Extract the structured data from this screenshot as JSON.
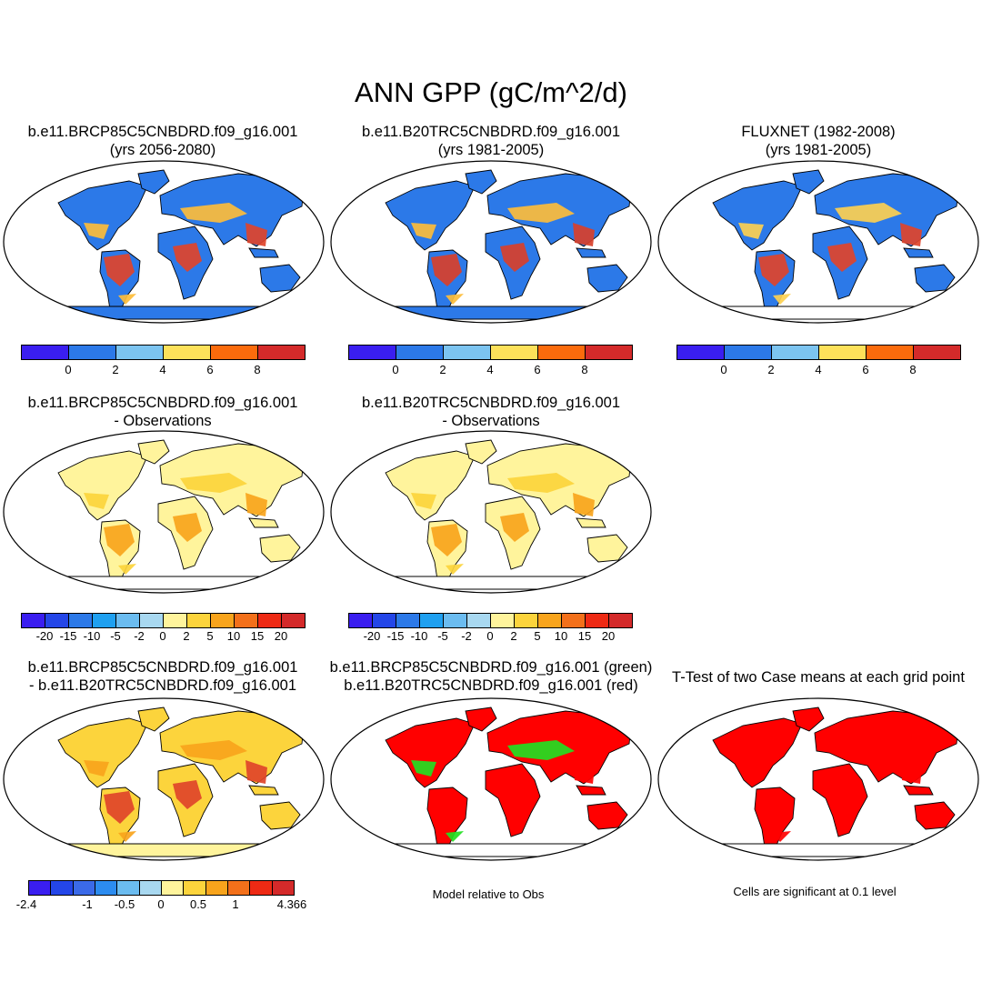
{
  "title": "ANN GPP (gC/m^2/d)",
  "panels": {
    "p1": {
      "line1": "b.e11.BRCP85C5CNBDRD.f09_g16.001",
      "line2": "(yrs 2056-2080)"
    },
    "p2": {
      "line1": "b.e11.B20TRC5CNBDRD.f09_g16.001",
      "line2": "(yrs 1981-2005)"
    },
    "p3": {
      "line1": "FLUXNET (1982-2008)",
      "line2": "(yrs 1981-2005)"
    },
    "p4": {
      "line1": "b.e11.BRCP85C5CNBDRD.f09_g16.001",
      "line2": "- Observations"
    },
    "p5": {
      "line1": "b.e11.B20TRC5CNBDRD.f09_g16.001",
      "line2": "- Observations"
    },
    "p7": {
      "line1": "b.e11.BRCP85C5CNBDRD.f09_g16.001",
      "line2": "- b.e11.B20TRC5CNBDRD.f09_g16.001"
    },
    "p8": {
      "line1": "b.e11.BRCP85C5CNBDRD.f09_g16.001 (green)",
      "line2": "b.e11.B20TRC5CNBDRD.f09_g16.001 (red)"
    },
    "p9": {
      "line1": "T-Test of two Case means at each grid point"
    }
  },
  "notes": {
    "p8": "Model relative to Obs",
    "p9": "Cells are significant at 0.1 level"
  },
  "colorbars": {
    "absolute": {
      "colors": [
        "#3a1ef0",
        "#2c79e8",
        "#7cc4f0",
        "#fde15a",
        "#fb6b0c",
        "#d42a2a"
      ],
      "ticks": [
        "0",
        "2",
        "4",
        "6",
        "8"
      ]
    },
    "difference": {
      "colors": [
        "#3a1ef0",
        "#2446e8",
        "#2c79e8",
        "#1fa0f0",
        "#6bbcf0",
        "#a8d8f0",
        "#fff49c",
        "#fcd43c",
        "#f8a41c",
        "#f3701a",
        "#ee2a14",
        "#d42a2a"
      ],
      "ticks": [
        "-20",
        "-15",
        "-10",
        "-5",
        "-2",
        "0",
        "2",
        "5",
        "10",
        "15",
        "20"
      ]
    },
    "change": {
      "colors": [
        "#3a1ef0",
        "#2446e8",
        "#3b6ae8",
        "#2c8cf0",
        "#6bbcf0",
        "#a8d8f0",
        "#fff49c",
        "#fcd43c",
        "#f8a41c",
        "#f3701a",
        "#ee2a14",
        "#d42a2a"
      ],
      "ticks": [
        "-2.4",
        "-1",
        "-0.5",
        "0",
        "0.5",
        "1",
        "4.366"
      ]
    }
  },
  "map_fills": {
    "p1": {
      "ocean": "#ffffff",
      "land": "#2c79e8",
      "tropics": "#e0442a",
      "mid": "#fdbd3a",
      "antarctica": "#2c79e8"
    },
    "p2": {
      "ocean": "#ffffff",
      "land": "#2c79e8",
      "tropics": "#d8402a",
      "mid": "#fdbd3a",
      "antarctica": "#2c79e8"
    },
    "p3": {
      "ocean": "#ffffff",
      "land": "#2c79e8",
      "tropics": "#e0442a",
      "mid": "#fdd050",
      "antarctica": "#ffffff"
    },
    "p4": {
      "ocean": "#ffffff",
      "land": "#fff49c",
      "tropics": "#f8a41c",
      "mid": "#fcd43c",
      "antarctica": "#ffffff"
    },
    "p5": {
      "ocean": "#ffffff",
      "land": "#fff49c",
      "tropics": "#f8a41c",
      "mid": "#fcd43c",
      "antarctica": "#ffffff"
    },
    "p7": {
      "ocean": "#ffffff",
      "land": "#fcd43c",
      "tropics": "#e0442a",
      "mid": "#f8a41c",
      "antarctica": "#fff49c"
    },
    "p8": {
      "ocean": "#ffffff",
      "land": "#ff0000",
      "tropics": "#ff0000",
      "mid": "#22e022",
      "antarctica": "#ffffff"
    },
    "p9": {
      "ocean": "#ffffff",
      "land": "#ff0000",
      "tropics": "#ff0000",
      "mid": "#ff0000",
      "antarctica": "#ffffff"
    }
  }
}
